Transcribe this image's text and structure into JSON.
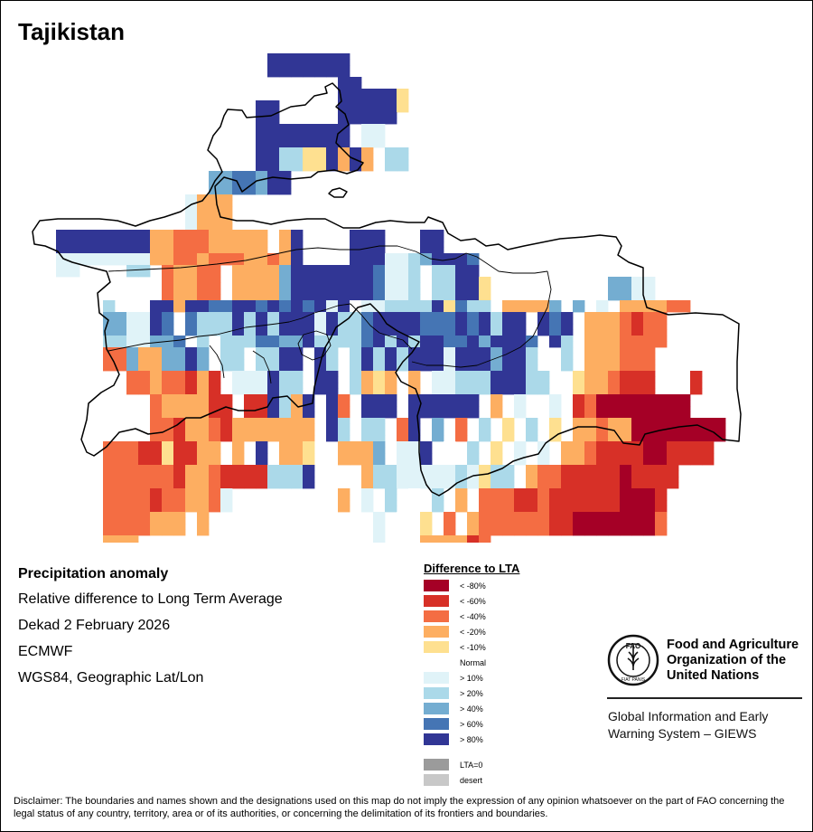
{
  "title": "Tajikistan",
  "info": {
    "heading": "Precipitation anomaly",
    "lines": [
      "Relative difference to Long Term Average",
      "Dekad 2 February 2026",
      "ECMWF",
      "WGS84, Geographic Lat/Lon"
    ]
  },
  "legend": {
    "title": "Difference to LTA",
    "classes": [
      {
        "label": "< -80%",
        "color": "#a50026"
      },
      {
        "label": "< -60%",
        "color": "#d73027"
      },
      {
        "label": "< -40%",
        "color": "#f46d43"
      },
      {
        "label": "< -20%",
        "color": "#fdae61"
      },
      {
        "label": "< -10%",
        "color": "#fee090"
      },
      {
        "label": "Normal",
        "color": "#ffffff"
      },
      {
        "label": "> 10%",
        "color": "#e0f3f8"
      },
      {
        "label": "> 20%",
        "color": "#abd9e9"
      },
      {
        "label": "> 40%",
        "color": "#74add1"
      },
      {
        "label": "> 60%",
        "color": "#4575b4"
      },
      {
        "label": "> 80%",
        "color": "#313695"
      }
    ],
    "extra": [
      {
        "label": "LTA=0",
        "color": "#9b9b9b"
      },
      {
        "label": "desert",
        "color": "#c8c8c8"
      }
    ]
  },
  "organization": {
    "name_lines": [
      "Food and Agriculture",
      "Organization of the",
      "United Nations"
    ],
    "logo_text": "FAO",
    "logo_motto": "FIAT PANIS",
    "system_lines": [
      "Global Information and Early",
      "Warning System – GIEWS"
    ]
  },
  "disclaimer": "Disclaimer: The boundaries and names shown and the designations used on this map do not imply the expression of any opinion whatsoever on the part of FAO concerning the legal status of any country, territory, area or of its authorities, or concerning the delimitation of its frontiers and boundaries.",
  "grid": {
    "code_key": "0=< -80%, 1=< -60%, 2=< -40%, 3=< -20%, 4=< -10%, 5=Normal, 6=> 10%, 7=> 20%, 8=> 40%, 9=> 60%, A=> 80%, .=no data",
    "rows": [
      ".........................................................",
      ".........................................................",
      ".........................................................",
      ".........................................................",
      ".........................................................",
      ".........................................................",
      ".........................................................",
      ".........................................................",
      ".........................................................",
      ".........................................................",
      "....................AAAAAAA..............................",
      "....................AAAAAAA..............................",
      "....................AAAAAAA..............................",
      "....................AAAAAAA..............................",
      "..........................AA.............................",
      "..........................AA.............................",
      "..........................AAAAA4.........................",
      "..........................AAAAA4.........................",
      "...................AA.....AAAAA4.........................",
      "...................AA.....AAAAA4.........................",
      "...................AA.....AAAAA..........................",
      "...................AA.....AAAAA..........................",
      "...................AAAAAAAA.66...........................",
      "...................AAAAAAAA.66...........................",
      "...................AAAAAAAA.66...........................",
      "...................AAAAAAAA.66...........................",
      "...................AA7744A3A3.77.........................",
      "...................AA7744A3A3.77.........................",
      "...................AA7744A3A3.77.........................",
      "...................AA7744A3A3.77.........................",
      "...............88998AA...................................",
      "...............88998AA...................................",
      "...............88998AA...................................",
      "...............88998AA...................................",
      ".............6333........................................",
      ".............6333........................................",
      ".............6333........................................",
      ".............6333........................................",
      ".............6333........................................",
      ".............6333........................................",
      "..AAAAAAAA3322233333.3A....AAA...AA......................",
      "..AAAAAAAA3322233333.3A....AAA...AA......................",
      "..AAAAAAAA3322233333.3A....AAA...AA......................",
      "..AAAAAAAA3322233333.3A....AAA...AA......................",
      "..66666666332232223323A....AAA6678AAA9...................",
      "..66666666332232223323A....AAA6678AAA9...................",
      "..66....77.23322.33338AAAAAAA9667.77AA...................",
      "..66....77.23322.33338AAAAAAA9667.77AA...................",
      "...........23322.33338AAAAAAA9667.77AA4..........8866....",
      "...........23322.33338AAAAAAA9667.77AA4..........8866....",
      "...........23322.33338AAAAAAA9667.77AA4..........8866....",
      "...........23322.33338AAAAAAA9667.77AA4..........8866....",
      "......7...AA3AA99AA9A9A9A6A5667777A4977.33338.8.6.333322.",
      "......7...AA3AA99AA9A9A9A6A5667777A4977.33338.8.6.333322.",
      "......8866A9.9777A7A7AAA6A779AAAA999A9A7AA.A9A.3332122...",
      "......8866A9.9777A7A7AAA6A779AAAA999A9A7AA.A9A.3332122...",
      "......8866A9.9777A7A7AAA6A779AAAA999A9A7AA.A9A.3332122...",
      "......8866A9.9777A7A7AAA6A779AAAA999A9A7AA.A9A.3332122...",
      "......7766889.7.7779988A77779A7A7AA99A8AAA9.A7.3332222...",
      "......7766889.7.7779988A77779A7A7AA99A8AAA9.A7.3332222...",
      "......2283388A8.77.77AA.A7.7A7A7AAA6AAA8AA7..7.333222...",
      "......2283388A8.77.77AA.A7.7A7A7AAA6AAA8AA7..7.333222...",
      "......2283388A8.77.77AA.A7.7A7A7AAA6AAA8AA7..7.333222...",
      "......2283388A8.77.77AA.A7.7A7A7AAA6AAA8AA7..7.333222...",
      "........22322131.666A77.AA.7343.3.66777AAA77..4332111...1",
      "........22322131.666A77.AA.7343.3.66777AAA77..4332111...1",
      "........22322131.666A77.AA.7343.3.66777AAA77..4332111...1",
      "........22322131.666A77.AA.7343.3.66777AAA77..4332111...1",
      "..........2333311.11A73A.A2.AAA.AAAAAA.3.6..6.1200000000.",
      "..........2333311.11A73A.A2.AAA.AAAAAA.3.6..6.1200000000.",
      "..........2333311.11A73A.A2.AAA.AAAAAA.3.6..6.1200000000.",
      "..........2333311.11A73A.A2.AAA.AAAAAA.3.6..6.1200000000.",
      "..........22133213333333.A7.77.2A.8.2.7.4.7.4.3323300000000",
      "..........22133213333333.A7.77.2A.8.2.7.4.7.4.3323300000000",
      "..........22133213333333.A7.77.2A.8.2.7.4.7.4.3323300000000",
      "..........22133213333333.A7.77.2A.8.2.7.4.7.4.3323300000000",
      "......2221141133.3.A.334..3338.66A.5.7.4.6.6.3321111001111",
      "......2221141133.3.A.334..3338.66A.5.7.4.6.6.3321111001111",
      "......2221141133.3.A.334..3338.66A.5.7.4.6.6.3321111001111",
      "......2221141133.3.A.334..3338.66A.5.7.4.6.6.3321111001111",
      "......22222213321111777A....3776666676477.3221111101111",
      "......22222213321111777A....3776666676477.3221111101111",
      "......22222213321111777A....3776666676477.3221111101111",
      "......22222213321111777A....3776666676477.3221111101111",
      "......22221223326.........3.6.7.5.7.3.2221121111110001",
      "......22221223326.........3.6.7.5.7.3.2221121111110001",
      "......22221223326.........3.6.7.5.7.3.2221121111110001",
      "......22221223326.........3.6.7.5.7.3.2221121111110001",
      "......2222333.3..............6.5.4.2.32222221100000002",
      "......2222333.3..............6.5.4.2.32222221100000002",
      "......2222333.3..............6.5.4.2.32222221100000002",
      "......2222333.3..............6.5.4.2.32222221100000002",
      "......333....................6.5.333312.............",
      "......333....................6.5.333312.............",
      "......3.....................6.5.333312..............",
      "......3.....................6.5.333312..............",
      "............................33.....................",
      "............................33....................."
    ]
  }
}
